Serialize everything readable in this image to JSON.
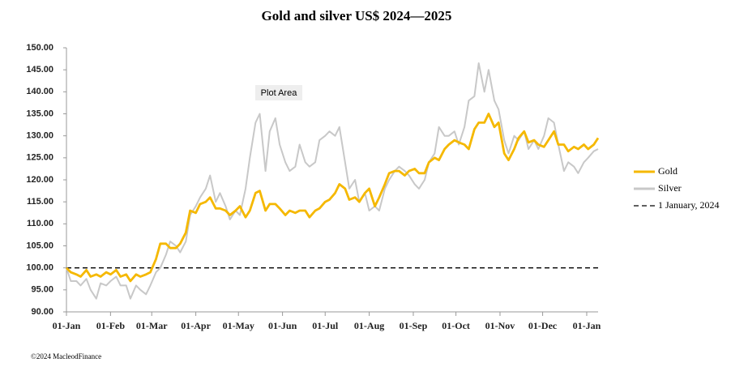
{
  "chart_data": {
    "type": "line",
    "title": "Gold and silver  US$ 2024—2025",
    "annotation": "Plot Area",
    "footer": "©2024 MacleodFinance",
    "x": [
      0,
      3,
      7,
      10,
      14,
      17,
      21,
      24,
      28,
      31,
      35,
      38,
      42,
      45,
      49,
      52,
      56,
      59,
      63,
      66,
      70,
      73,
      77,
      80,
      84,
      87,
      91,
      94,
      98,
      101,
      105,
      108,
      112,
      115,
      119,
      122,
      126,
      129,
      133,
      136,
      140,
      143,
      147,
      150,
      154,
      157,
      161,
      164,
      168,
      171,
      175,
      178,
      182,
      185,
      189,
      192,
      196,
      199,
      203,
      206,
      210,
      213,
      217,
      220,
      224,
      227,
      231,
      234,
      238,
      241,
      245,
      248,
      252,
      255,
      259,
      262,
      266,
      269,
      273,
      276,
      280,
      283,
      287,
      290,
      294,
      297,
      301,
      304,
      308,
      311,
      315,
      318,
      322,
      325,
      329,
      332,
      336,
      339,
      343,
      346,
      350,
      353,
      357,
      360,
      364,
      367,
      371,
      374
    ],
    "series": [
      {
        "name": "Gold",
        "color": "#f5b800",
        "values": [
          100,
          99,
          98.5,
          98,
          99.5,
          98,
          98.5,
          98,
          99,
          98.5,
          99.5,
          98,
          98.5,
          97,
          98.5,
          98,
          98.5,
          99,
          102,
          105.5,
          105.5,
          104.5,
          104.5,
          105.5,
          108,
          113,
          112.5,
          114.5,
          115,
          116,
          113.5,
          113.5,
          113,
          112,
          113,
          114,
          111.5,
          113,
          117,
          117.5,
          113,
          114.5,
          114.5,
          113.5,
          112,
          113,
          112.5,
          113,
          113,
          111.5,
          113,
          113.5,
          115,
          115.5,
          117,
          119,
          118,
          115.5,
          116,
          115,
          117,
          118,
          114,
          116,
          119,
          121.5,
          122,
          122,
          121,
          122,
          122.5,
          121.5,
          121.5,
          124,
          125,
          124.5,
          127,
          128,
          129,
          128.5,
          128,
          127,
          131.5,
          133,
          133,
          135,
          132,
          133,
          126,
          124.5,
          127,
          129.5,
          131,
          128.5,
          129,
          128,
          127.5,
          129,
          131,
          128,
          128,
          126.5,
          127.5,
          127,
          128,
          127,
          128,
          129.5
        ]
      },
      {
        "name": "Silver",
        "color": "#c8c8c8",
        "values": [
          100,
          97,
          97,
          96,
          97.5,
          95,
          93,
          96.5,
          96,
          97,
          98,
          96,
          96,
          93,
          96,
          95,
          94,
          96,
          99,
          100,
          103,
          106,
          105,
          103.5,
          106,
          112,
          114,
          116,
          118,
          121,
          115,
          117,
          114,
          111,
          113,
          112,
          118,
          125,
          133,
          135,
          122,
          131,
          134,
          128,
          124,
          122,
          123,
          128,
          124,
          123,
          124,
          129,
          130,
          131,
          130,
          132,
          124,
          118,
          120,
          115,
          117,
          113,
          114,
          113,
          118,
          120,
          122,
          123,
          122,
          121,
          119,
          118,
          120,
          124,
          126,
          132,
          130,
          130,
          131,
          128,
          132,
          138,
          139,
          146.5,
          140,
          145,
          138,
          136,
          129,
          126,
          130,
          129,
          131,
          127,
          129,
          127,
          130,
          134,
          133,
          128,
          122,
          124,
          123,
          121.5,
          124,
          125,
          126.5,
          127
        ]
      }
    ],
    "reference_line": {
      "name": "1 January, 2024",
      "value": 100,
      "color": "#000000"
    },
    "xlim": [
      0,
      374
    ],
    "xticks": [
      {
        "value": 0,
        "label": "01-Jan"
      },
      {
        "value": 31,
        "label": "01-Feb"
      },
      {
        "value": 60,
        "label": "01-Mar"
      },
      {
        "value": 91,
        "label": "01-Apr"
      },
      {
        "value": 121,
        "label": "01-May"
      },
      {
        "value": 152,
        "label": "01-Jun"
      },
      {
        "value": 182,
        "label": "01-Jul"
      },
      {
        "value": 213,
        "label": "01-Aug"
      },
      {
        "value": 244,
        "label": "01-Sep"
      },
      {
        "value": 274,
        "label": "01-Oct"
      },
      {
        "value": 305,
        "label": "01-Nov"
      },
      {
        "value": 335,
        "label": "01-Dec"
      },
      {
        "value": 366,
        "label": "01-Jan"
      }
    ],
    "ylim": [
      90,
      150
    ],
    "yticks": [
      {
        "value": 90,
        "label": "90.00"
      },
      {
        "value": 95,
        "label": "95.00"
      },
      {
        "value": 100,
        "label": "100.00"
      },
      {
        "value": 105,
        "label": "105.00"
      },
      {
        "value": 110,
        "label": "110.00"
      },
      {
        "value": 115,
        "label": "115.00"
      },
      {
        "value": 120,
        "label": "120.00"
      },
      {
        "value": 125,
        "label": "125.00"
      },
      {
        "value": 130,
        "label": "130.00"
      },
      {
        "value": 135,
        "label": "135.00"
      },
      {
        "value": 140,
        "label": "140.00"
      },
      {
        "value": 145,
        "label": "145.00"
      },
      {
        "value": 150,
        "label": "150.00"
      }
    ],
    "grid": false,
    "legend": "right"
  }
}
